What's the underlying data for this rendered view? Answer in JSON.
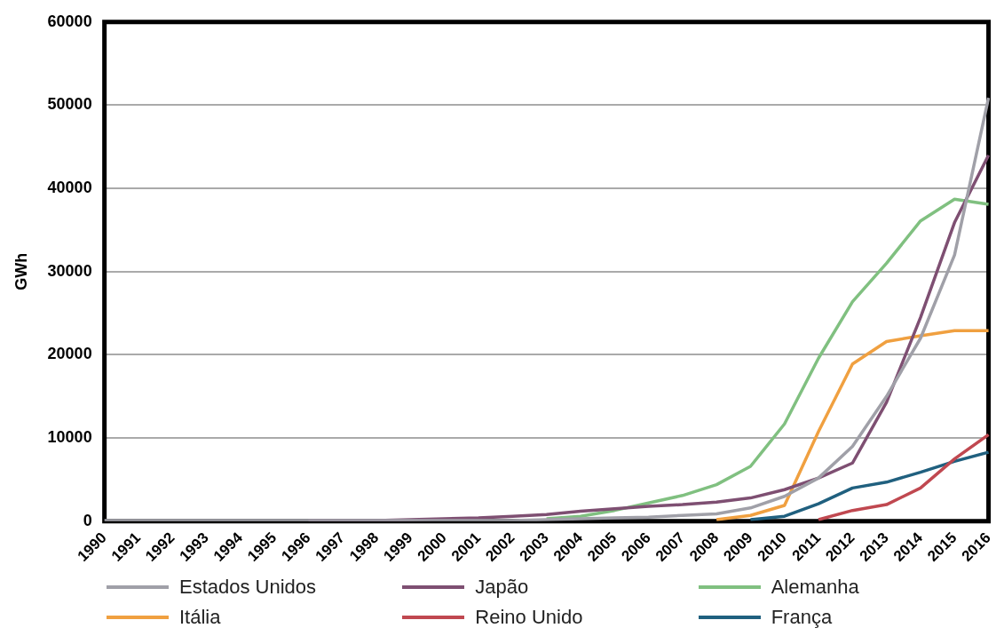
{
  "chart_data": {
    "type": "line",
    "ylabel": "GWh",
    "categories": [
      "1990",
      "1991",
      "1992",
      "1993",
      "1994",
      "1995",
      "1996",
      "1997",
      "1998",
      "1999",
      "2000",
      "2001",
      "2002",
      "2003",
      "2004",
      "2005",
      "2006",
      "2007",
      "2008",
      "2009",
      "2010",
      "2011",
      "2012",
      "2013",
      "2014",
      "2015",
      "2016"
    ],
    "ylim": [
      0,
      60000
    ],
    "yticks": [
      0,
      10000,
      20000,
      30000,
      40000,
      50000,
      60000
    ],
    "grid": "y",
    "legend": "bottom",
    "marker": "none",
    "line_style": "solid",
    "series": [
      {
        "name": "Estados Unidos",
        "color": "#a0a0a8",
        "values": [
          100,
          100,
          100,
          100,
          100,
          100,
          100,
          100,
          100,
          100,
          100,
          100,
          100,
          200,
          300,
          400,
          500,
          700,
          900,
          1600,
          3000,
          5200,
          9000,
          15000,
          22000,
          32000,
          50900
        ]
      },
      {
        "name": "Japão",
        "color": "#7e4f72",
        "values": [
          null,
          null,
          null,
          null,
          null,
          null,
          100,
          100,
          100,
          200,
          300,
          400,
          600,
          800,
          1200,
          1500,
          1800,
          2000,
          2300,
          2800,
          3800,
          5200,
          7000,
          14300,
          24500,
          35900,
          44000
        ]
      },
      {
        "name": "Alemanha",
        "color": "#80c080",
        "values": [
          null,
          null,
          null,
          null,
          null,
          null,
          null,
          null,
          null,
          null,
          null,
          null,
          null,
          300,
          600,
          1300,
          2200,
          3100,
          4400,
          6600,
          11700,
          19600,
          26400,
          31000,
          36100,
          38700,
          38100
        ]
      },
      {
        "name": "Itália",
        "color": "#f0a040",
        "values": [
          null,
          null,
          null,
          null,
          null,
          null,
          null,
          null,
          null,
          null,
          null,
          null,
          null,
          null,
          null,
          null,
          null,
          null,
          200,
          700,
          1900,
          10800,
          18900,
          21600,
          22300,
          22900,
          22900
        ]
      },
      {
        "name": "Reino Unido",
        "color": "#c04850",
        "values": [
          null,
          null,
          null,
          null,
          null,
          null,
          null,
          null,
          null,
          null,
          null,
          null,
          null,
          null,
          null,
          null,
          null,
          null,
          null,
          null,
          null,
          200,
          1300,
          2000,
          4000,
          7500,
          10400
        ]
      },
      {
        "name": "França",
        "color": "#20607f",
        "values": [
          null,
          null,
          null,
          null,
          null,
          null,
          null,
          null,
          null,
          null,
          null,
          null,
          null,
          null,
          null,
          null,
          null,
          null,
          null,
          200,
          600,
          2100,
          4000,
          4700,
          5900,
          7200,
          8300
        ]
      }
    ]
  }
}
